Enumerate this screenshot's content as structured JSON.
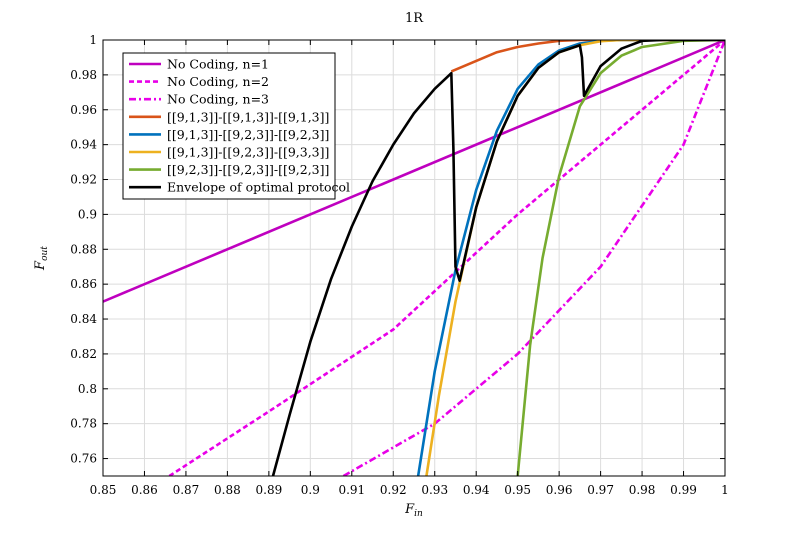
{
  "chart_data": {
    "type": "line",
    "title": "1R",
    "xlabel": "F",
    "xlabel_sub": "in",
    "ylabel": "F",
    "ylabel_sub": "out",
    "xlim": [
      0.85,
      1.0
    ],
    "ylim": [
      0.75,
      1.0
    ],
    "grid": true,
    "legend_position": "top-left",
    "x_ticks": [
      0.85,
      0.86,
      0.87,
      0.88,
      0.89,
      0.9,
      0.91,
      0.92,
      0.93,
      0.94,
      0.95,
      0.96,
      0.97,
      0.98,
      0.99,
      1
    ],
    "x_tick_labels": [
      "0.85",
      "0.86",
      "0.87",
      "0.88",
      "0.89",
      "0.9",
      "0.91",
      "0.92",
      "0.93",
      "0.94",
      "0.95",
      "0.96",
      "0.97",
      "0.98",
      "0.99",
      "1"
    ],
    "y_ticks": [
      0.76,
      0.78,
      0.8,
      0.82,
      0.84,
      0.86,
      0.88,
      0.9,
      0.92,
      0.94,
      0.96,
      0.98,
      1
    ],
    "y_tick_labels": [
      "0.76",
      "0.78",
      "0.8",
      "0.82",
      "0.84",
      "0.86",
      "0.88",
      "0.9",
      "0.92",
      "0.94",
      "0.96",
      "0.98",
      "1"
    ],
    "series": [
      {
        "name": "No Coding, n=1",
        "color": "#bf00bf",
        "dash": "solid",
        "x": [
          0.85,
          1.0
        ],
        "y": [
          0.85,
          1.0
        ]
      },
      {
        "name": "No Coding, n=2",
        "color": "#e800e8",
        "dash": "dashed",
        "x": [
          0.866,
          0.89,
          0.92,
          0.95,
          0.98,
          1.0
        ],
        "y": [
          0.75,
          0.787,
          0.834,
          0.9,
          0.96,
          1.0
        ]
      },
      {
        "name": "No Coding, n=3",
        "color": "#e800e8",
        "dash": "dashdot",
        "x": [
          0.908,
          0.93,
          0.95,
          0.97,
          0.99,
          1.0
        ],
        "y": [
          0.75,
          0.78,
          0.82,
          0.87,
          0.94,
          1.0
        ]
      },
      {
        "name": "[[9,1,3]]-[[9,1,3]]-[[9,1,3]]",
        "color": "#d9541a",
        "dash": "solid",
        "x": [
          0.934,
          0.94,
          0.945,
          0.95,
          0.955,
          0.96,
          0.965,
          0.97,
          0.975,
          0.98,
          0.99,
          1.0
        ],
        "y": [
          0.982,
          0.988,
          0.993,
          0.996,
          0.998,
          0.9995,
          1.0,
          1.0,
          1.0,
          1.0,
          1.0,
          1.0
        ]
      },
      {
        "name": "[[9,1,3]]-[[9,2,3]]-[[9,2,3]]",
        "color": "#0072bd",
        "dash": "solid",
        "x": [
          0.926,
          0.93,
          0.935,
          0.94,
          0.945,
          0.95,
          0.955,
          0.96,
          0.965,
          0.97,
          0.975,
          0.98
        ],
        "y": [
          0.75,
          0.81,
          0.868,
          0.914,
          0.948,
          0.972,
          0.986,
          0.994,
          0.998,
          0.9995,
          1.0,
          1.0
        ]
      },
      {
        "name": "[[9,1,3]]-[[9,2,3]]-[[9,3,3]]",
        "color": "#edb120",
        "dash": "solid",
        "x": [
          0.928,
          0.931,
          0.935,
          0.94,
          0.945,
          0.95,
          0.955,
          0.96,
          0.965,
          0.97,
          0.975,
          0.98,
          0.99
        ],
        "y": [
          0.75,
          0.796,
          0.85,
          0.904,
          0.942,
          0.968,
          0.984,
          0.993,
          0.997,
          0.9993,
          1.0,
          1.0,
          1.0
        ]
      },
      {
        "name": "[[9,2,3]]-[[9,2,3]]-[[9,2,3]]",
        "color": "#77ac30",
        "dash": "solid",
        "x": [
          0.95,
          0.953,
          0.956,
          0.96,
          0.965,
          0.97,
          0.975,
          0.98,
          0.99,
          1.0
        ],
        "y": [
          0.75,
          0.825,
          0.875,
          0.922,
          0.962,
          0.981,
          0.991,
          0.996,
          0.9995,
          1.0
        ]
      },
      {
        "name": "Envelope of optimal protocol",
        "color": "#000000",
        "dash": "solid",
        "x": [
          0.891,
          0.895,
          0.9,
          0.905,
          0.91,
          0.915,
          0.92,
          0.925,
          0.93,
          0.934,
          0.9345,
          0.935,
          0.936,
          0.94,
          0.945,
          0.95,
          0.955,
          0.96,
          0.965,
          0.9655,
          0.966,
          0.97,
          0.975,
          0.98,
          0.985,
          0.99,
          1.0
        ],
        "y": [
          0.75,
          0.785,
          0.827,
          0.863,
          0.893,
          0.919,
          0.94,
          0.958,
          0.972,
          0.981,
          0.938,
          0.87,
          0.862,
          0.904,
          0.942,
          0.968,
          0.984,
          0.993,
          0.997,
          0.99,
          0.968,
          0.985,
          0.995,
          0.9995,
          1.0,
          1.0,
          1.0
        ]
      }
    ]
  }
}
